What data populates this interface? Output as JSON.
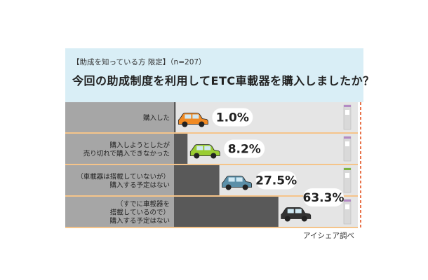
{
  "header": {
    "subtitle": "【助成を知っている方 限定】（n=207）",
    "title": "今回の助成制度を利用してETC車載器を購入しましたか？"
  },
  "source": "アイシェア調べ",
  "colors": {
    "header_bg": "#d9eef6",
    "label_bg": "#a6a6a6",
    "track_bg": "#e5e5e5",
    "bar": "#595959",
    "separator": "#f5c48a",
    "value_bubble": "#ffffff"
  },
  "icons": [
    "car-icon",
    "fuel-pump-icon"
  ],
  "car_colors": [
    "#f08a24",
    "#9acd32",
    "#5b8fa8",
    "#333333"
  ],
  "chart_data": {
    "type": "bar",
    "orientation": "horizontal",
    "categories": [
      [
        "購入した"
      ],
      [
        "購入しようとしたが",
        "売り切れで購入できなかった"
      ],
      [
        "（車載器は搭載していないが）",
        "購入する予定はない"
      ],
      [
        "（すでに車載器を",
        "搭載しているので）",
        "購入する予定はない"
      ]
    ],
    "values": [
      1.0,
      8.2,
      27.5,
      63.3
    ],
    "value_labels": [
      "1.0%",
      "8.2%",
      "27.5%",
      "63.3%"
    ],
    "unit": "%",
    "xlim": [
      0,
      100
    ]
  }
}
